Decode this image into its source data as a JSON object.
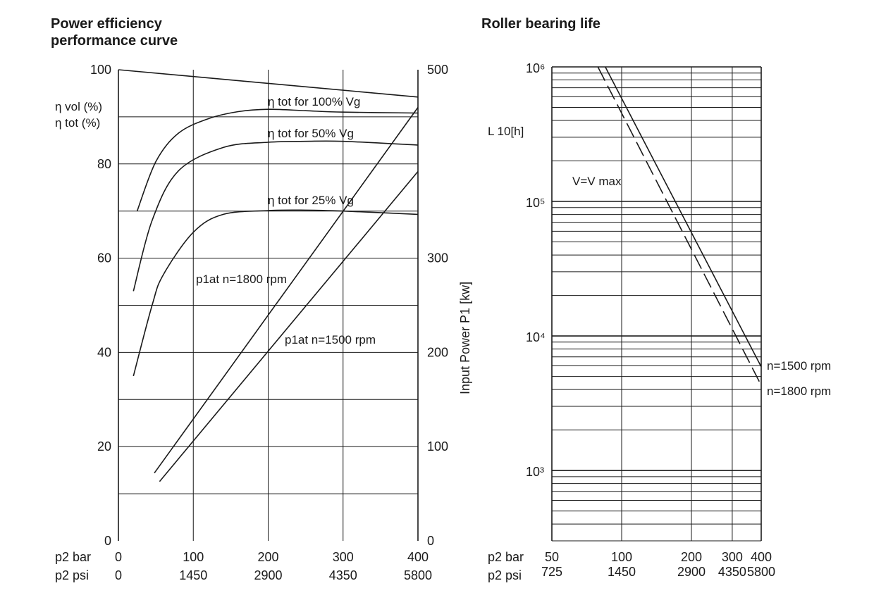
{
  "left_chart": {
    "title_line1": "Power efficiency",
    "title_line2": "performance curve",
    "y_left_label_vol": "η vol (%)",
    "y_left_label_tot": "η tot (%)",
    "y_right_label": "Input Power P1 [kw]",
    "x_row1_label": "p2 bar",
    "x_row2_label": "p2 psi",
    "curve_labels": {
      "tot100": "η tot  for 100%  Vg",
      "tot50": "η tot  for  50%  Vg",
      "tot25": "η tot  for  25%  Vg",
      "p1_1800": "p1at n=1800 rpm",
      "p1_1500": "p1at n=1500 rpm"
    }
  },
  "right_chart": {
    "title": "Roller bearing life",
    "y_label": "L 10[h]",
    "annotation": "V=V max",
    "x_row1_label": "p2 bar",
    "x_row2_label": "p2 psi",
    "series_labels": {
      "n1500": "n=1500 rpm",
      "n1800": "n=1800 rpm"
    }
  },
  "chart_data": [
    {
      "type": "line",
      "title": "Power efficiency performance curve",
      "xlabel": "p2 bar",
      "x_secondary_label": "p2 psi",
      "ylabel": "η vol (%) / η tot (%)",
      "y2label": "Input Power P1 [kw]",
      "xlim": [
        0,
        400
      ],
      "ylim": [
        0,
        100
      ],
      "y2lim": [
        0,
        500
      ],
      "x_ticks": [
        0,
        100,
        200,
        300,
        400
      ],
      "x_ticks_psi": [
        0,
        1450,
        2900,
        4350,
        5800
      ],
      "y_ticks": [
        0,
        20,
        40,
        60,
        80,
        100
      ],
      "y2_ticks": [
        0,
        100,
        200,
        300,
        500
      ],
      "grid": true,
      "series": [
        {
          "name": "η vol",
          "axis": "left",
          "style": "solid",
          "points": [
            [
              0,
              100
            ],
            [
              400,
              94.2
            ]
          ]
        },
        {
          "name": "η tot for 100% Vg",
          "axis": "left",
          "style": "solid",
          "points": [
            [
              25,
              70
            ],
            [
              50,
              80.5
            ],
            [
              80,
              86.5
            ],
            [
              120,
              89.6
            ],
            [
              160,
              91.1
            ],
            [
              200,
              91.6
            ],
            [
              250,
              91.3
            ],
            [
              300,
              91.0
            ],
            [
              400,
              90.8
            ]
          ]
        },
        {
          "name": "η tot for 50% Vg",
          "axis": "left",
          "style": "solid",
          "points": [
            [
              20,
              53
            ],
            [
              45,
              68
            ],
            [
              80,
              78.5
            ],
            [
              140,
              83.5
            ],
            [
              200,
              84.6
            ],
            [
              250,
              84.8
            ],
            [
              300,
              84.8
            ],
            [
              400,
              84.0
            ]
          ]
        },
        {
          "name": "η tot for 25% Vg",
          "axis": "left",
          "style": "solid",
          "points": [
            [
              20,
              35
            ],
            [
              45,
              50
            ],
            [
              60,
              56.5
            ],
            [
              100,
              65.5
            ],
            [
              140,
              69.3
            ],
            [
              200,
              70.1
            ],
            [
              250,
              70.2
            ],
            [
              300,
              70.0
            ],
            [
              400,
              69.3
            ]
          ]
        },
        {
          "name": "p1 at n=1800 rpm",
          "axis": "right",
          "style": "solid",
          "points": [
            [
              48,
              72
            ],
            [
              400,
              460
            ]
          ]
        },
        {
          "name": "p1 at n=1500 rpm",
          "axis": "right",
          "style": "solid",
          "points": [
            [
              55,
              63
            ],
            [
              400,
              392
            ]
          ]
        }
      ]
    },
    {
      "type": "line",
      "title": "Roller bearing life",
      "xlabel": "p2 bar",
      "x_secondary_label": "p2 psi",
      "ylabel": "L 10[h]",
      "x_scale": "log",
      "y_scale": "log",
      "xlim": [
        50,
        400
      ],
      "ylim": [
        300,
        1000000
      ],
      "x_ticks": [
        50,
        100,
        200,
        300,
        400
      ],
      "x_ticks_psi": [
        725,
        1450,
        2900,
        4350,
        5800
      ],
      "y_ticks": [
        1000,
        10000,
        100000,
        1000000
      ],
      "y_tick_labels": [
        "10³",
        "10⁴",
        "10⁵",
        "10⁶"
      ],
      "grid": true,
      "annotation": "V=V max",
      "series": [
        {
          "name": "n=1500 rpm",
          "style": "solid",
          "points": [
            [
              85,
              1000000
            ],
            [
              400,
              5900
            ]
          ]
        },
        {
          "name": "n=1800 rpm",
          "style": "dashed",
          "points": [
            [
              79,
              1000000
            ],
            [
              400,
              4300
            ]
          ]
        }
      ]
    }
  ]
}
